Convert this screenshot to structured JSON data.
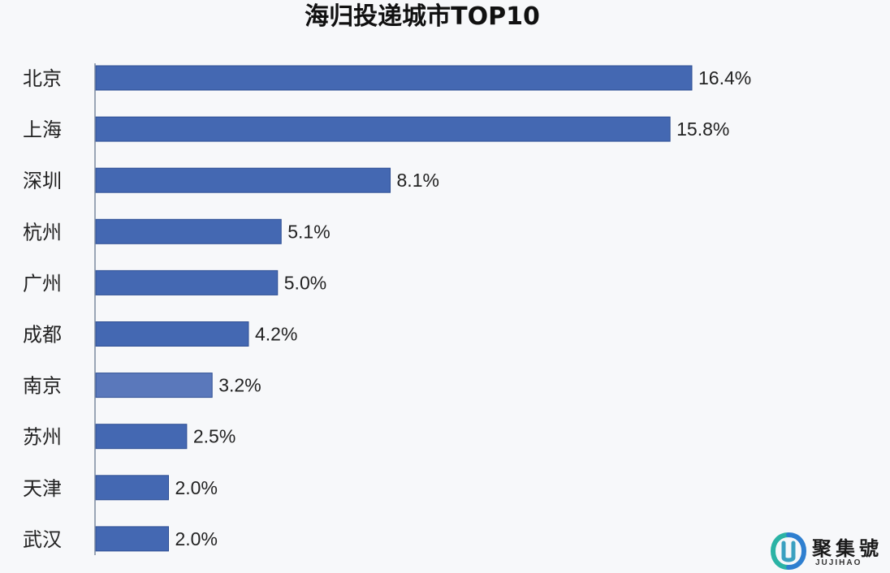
{
  "chart_data": {
    "type": "bar",
    "orientation": "horizontal",
    "title": "海归投递城市TOP10",
    "xlabel": "",
    "ylabel": "",
    "categories": [
      "北京",
      "上海",
      "深圳",
      "杭州",
      "广州",
      "成都",
      "南京",
      "苏州",
      "天津",
      "武汉"
    ],
    "values": [
      16.4,
      15.8,
      8.1,
      5.1,
      5.0,
      4.2,
      3.2,
      2.5,
      2.0,
      2.0
    ],
    "value_labels": [
      "16.4%",
      "15.8%",
      "8.1%",
      "5.1%",
      "5.0%",
      "4.2%",
      "3.2%",
      "2.5%",
      "2.0%",
      "2.0%"
    ],
    "xlim": [
      0,
      16.4
    ],
    "grid": false,
    "legend": "none",
    "colors": {
      "bar": "#4468b2",
      "bar_light": "#5a78bb",
      "axis": "#9aa5b5",
      "text": "#222222",
      "background": "#f7f8fa"
    }
  },
  "watermark": {
    "text": "聚集號",
    "subtext": "JUJIHAO"
  }
}
